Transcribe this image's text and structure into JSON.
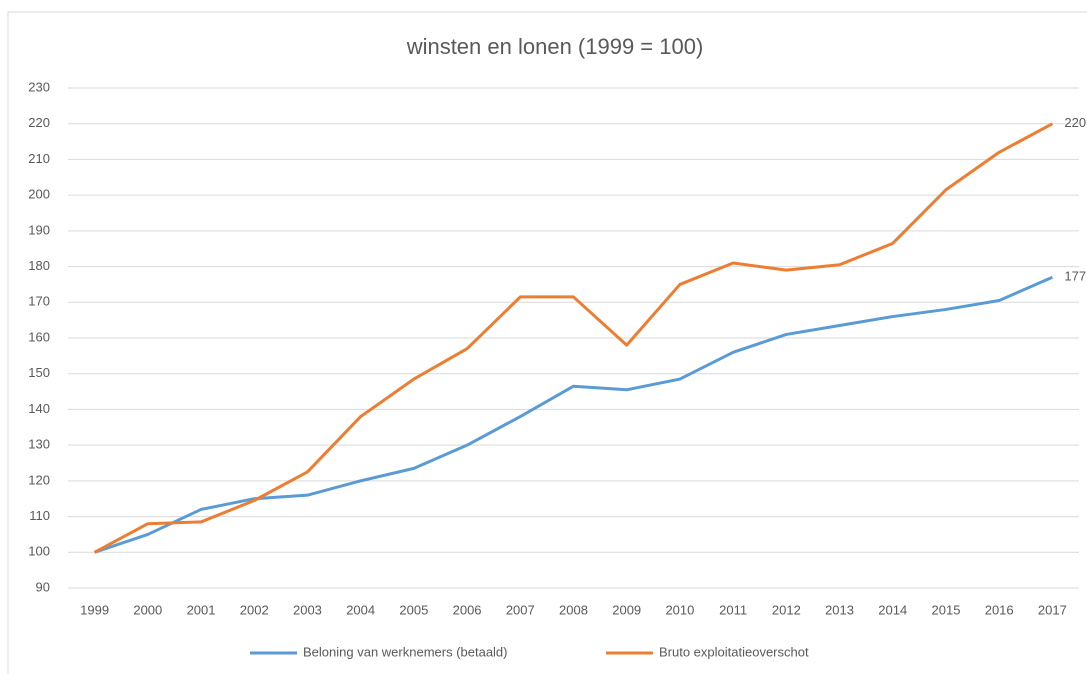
{
  "chart_data": {
    "type": "line",
    "title": "winsten en lonen (1999 = 100)",
    "categories": [
      "1999",
      "2000",
      "2001",
      "2002",
      "2003",
      "2004",
      "2005",
      "2006",
      "2007",
      "2008",
      "2009",
      "2010",
      "2011",
      "2012",
      "2013",
      "2014",
      "2015",
      "2016",
      "2017"
    ],
    "series": [
      {
        "name": "Beloning van werknemers (betaald)",
        "color": "#5b9bd5",
        "values": [
          100,
          105,
          112,
          115,
          116,
          120,
          123.5,
          130,
          138,
          146.5,
          145.5,
          148.5,
          156,
          161,
          163.5,
          166,
          168,
          170.5,
          177
        ]
      },
      {
        "name": "Bruto exploitatieoverschot",
        "color": "#ed7d31",
        "values": [
          100,
          108,
          108.5,
          114.5,
          122.5,
          138,
          148.5,
          157,
          171.5,
          171.5,
          158,
          175,
          181,
          179,
          180.5,
          186.5,
          201.5,
          212,
          220
        ]
      }
    ],
    "ylim": [
      90,
      230
    ],
    "yticks": [
      90,
      100,
      110,
      120,
      130,
      140,
      150,
      160,
      170,
      180,
      190,
      200,
      210,
      220,
      230
    ],
    "grid": true,
    "legend": "bottom"
  }
}
